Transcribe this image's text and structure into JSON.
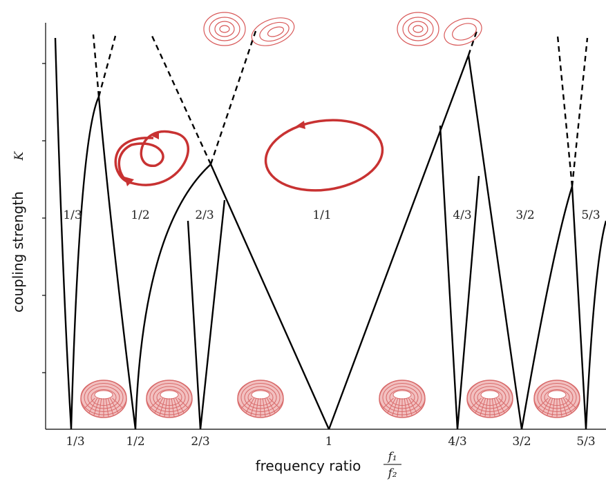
{
  "axes": {
    "y_label": "coupling strength",
    "y_symbol": "K",
    "x_label": "frequency ratio",
    "x_symbol_numerator": "f₁",
    "x_symbol_denominator": "f₂"
  },
  "x_ticks": [
    "1/3",
    "1/2",
    "2/3",
    "1",
    "4/3",
    "3/2",
    "5/3"
  ],
  "tongue_labels": [
    "1/3",
    "1/2",
    "2/3",
    "1/1",
    "4/3",
    "3/2",
    "5/3"
  ]
}
